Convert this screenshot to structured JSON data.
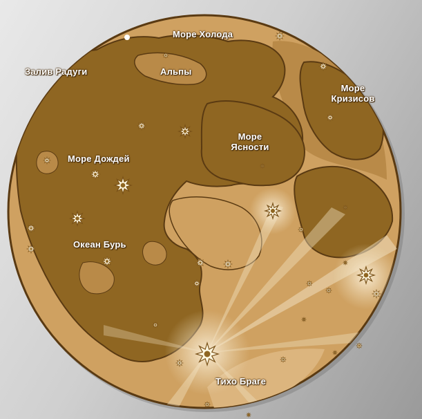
{
  "map": {
    "labels": {
      "sea_of_cold": "Море Холода",
      "bay_of_rainbows": "Залив Радуги",
      "alps": "Альпы",
      "sea_of_crises_line1": "Море",
      "sea_of_crises_line2": "Кризисов",
      "sea_of_serenity_line1": "Море",
      "sea_of_serenity_line2": "Ясности",
      "sea_of_rains": "Море Дождей",
      "ocean_of_storms": "Океан Бурь",
      "tycho": "Тихо Браге"
    },
    "colors": {
      "maria": "#8f6622",
      "highlands": "#cfa161",
      "light_rays": "#f3e6c8",
      "crater_star": "#fff7e0",
      "outline": "#5a3a12"
    }
  }
}
